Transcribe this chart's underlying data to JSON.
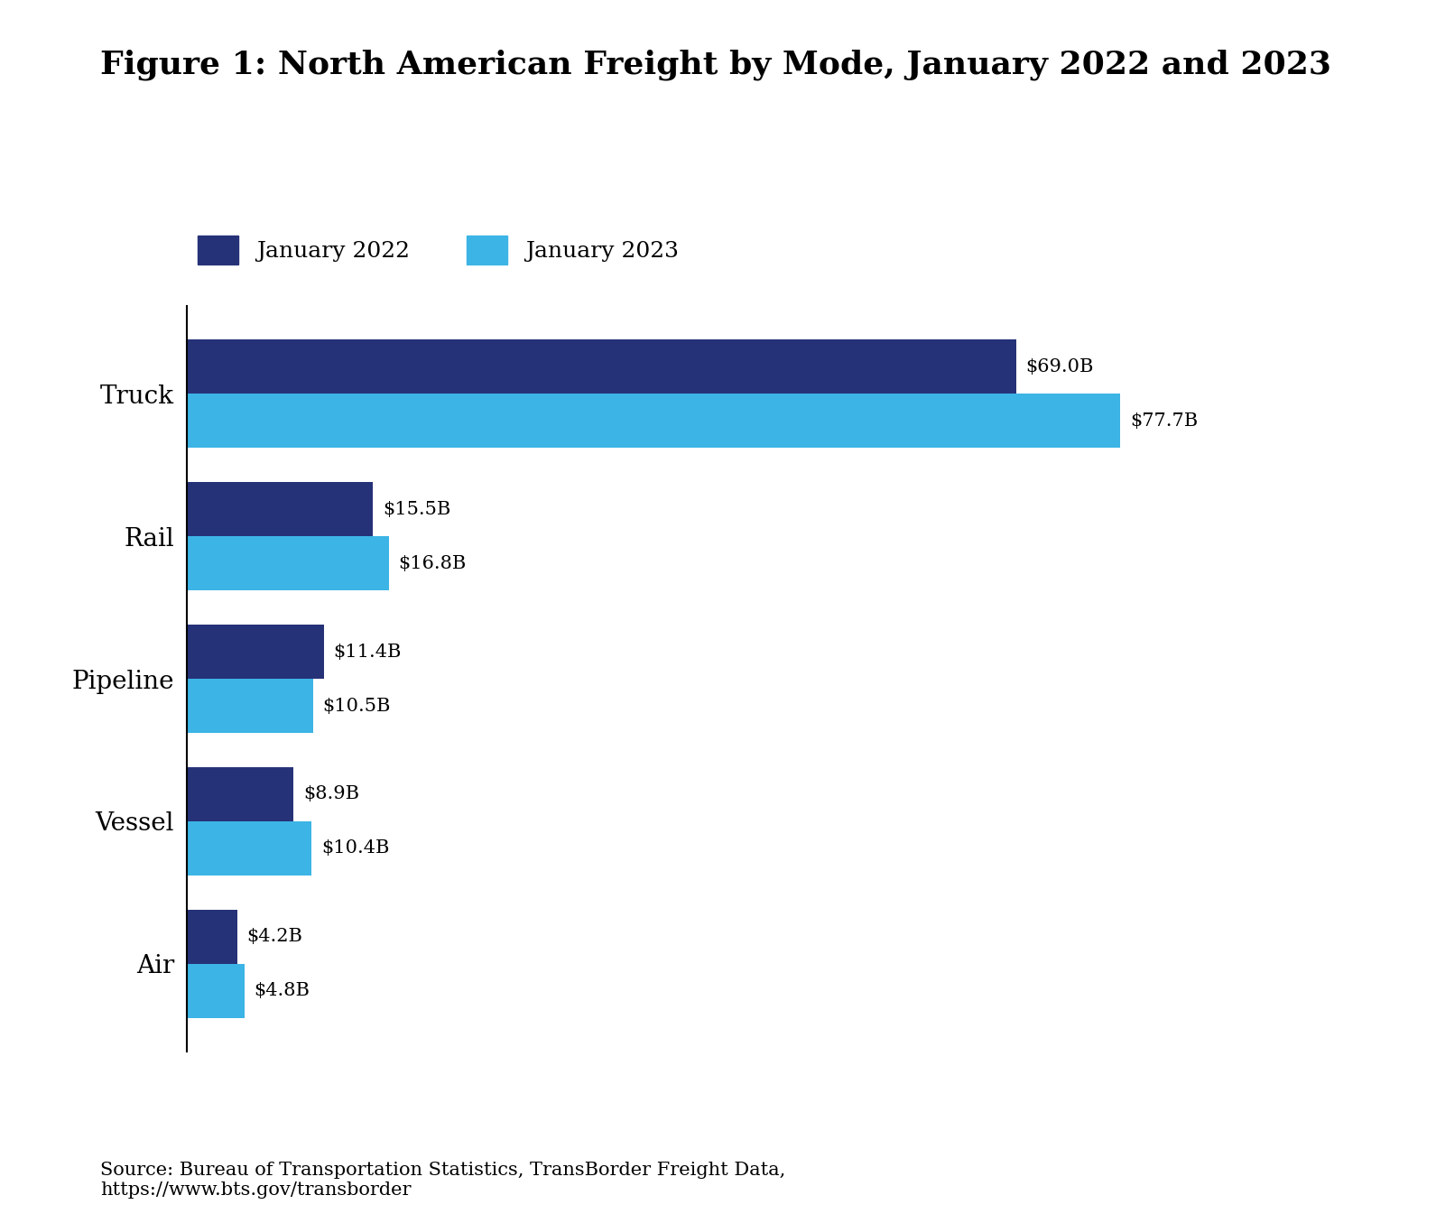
{
  "title": "Figure 1: North American Freight by Mode, January 2022 and 2023",
  "categories": [
    "Truck",
    "Rail",
    "Pipeline",
    "Vessel",
    "Air"
  ],
  "values_2022": [
    69.0,
    15.5,
    11.4,
    8.9,
    4.2
  ],
  "values_2023": [
    77.7,
    16.8,
    10.5,
    10.4,
    4.8
  ],
  "labels_2022": [
    "$69.0B",
    "$15.5B",
    "$11.4B",
    "$8.9B",
    "$4.2B"
  ],
  "labels_2023": [
    "$77.7B",
    "$16.8B",
    "$10.5B",
    "$10.4B",
    "$4.8B"
  ],
  "color_2022": "#263278",
  "color_2023": "#3cb4e5",
  "legend_2022": "January 2022",
  "legend_2023": "January 2023",
  "source_text": "Source: Bureau of Transportation Statistics, TransBorder Freight Data,\nhttps://www.bts.gov/transborder",
  "bar_height": 0.38,
  "label_fontsize": 15,
  "title_fontsize": 26,
  "legend_fontsize": 18,
  "category_fontsize": 20,
  "source_fontsize": 15,
  "xlim": [
    0,
    92
  ]
}
